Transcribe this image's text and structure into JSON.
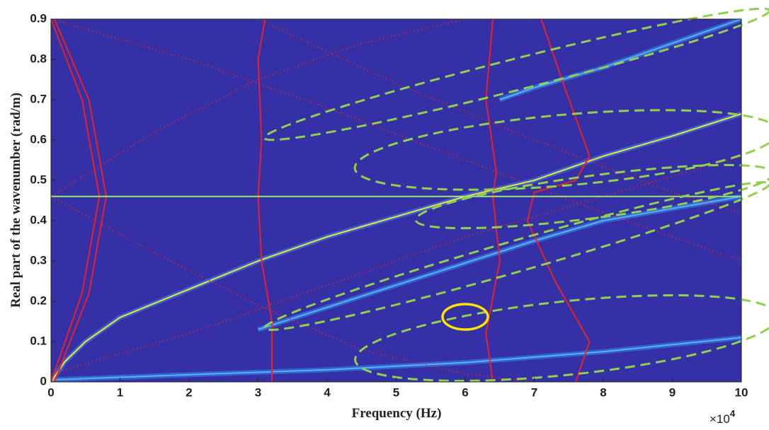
{
  "chart_data": {
    "type": "line",
    "xlabel": "Frequency (Hz)",
    "ylabel": "Real part of the wavenumber (rad/m)",
    "x_multiplier_base": "×10",
    "x_multiplier_power": "4",
    "xlim": [
      0,
      10
    ],
    "ylim": [
      0,
      0.9
    ],
    "xticks": [
      0,
      1,
      2,
      3,
      4,
      5,
      6,
      7,
      8,
      9,
      10
    ],
    "yticks": [
      0,
      0.1,
      0.2,
      0.3,
      0.4,
      0.5,
      0.6,
      0.7,
      0.8,
      0.9
    ],
    "background": "#3530a6",
    "hline": {
      "value": 0.46,
      "color": "#9be86a"
    },
    "series": [
      {
        "color": "#4fb4ff",
        "dashed": false,
        "x": [
          0,
          2,
          4,
          6,
          8,
          10
        ],
        "values": [
          0.005,
          0.018,
          0.03,
          0.048,
          0.075,
          0.11
        ]
      },
      {
        "color": "#4fb4ff",
        "dashed": false,
        "x": [
          3,
          4,
          5,
          6,
          7,
          8,
          9,
          10
        ],
        "values": [
          0.13,
          0.185,
          0.24,
          0.295,
          0.35,
          0.4,
          0.43,
          0.46
        ]
      },
      {
        "color": "#4fb4ff",
        "dashed": false,
        "x": [
          6.5,
          7,
          8,
          9,
          10
        ],
        "values": [
          0.7,
          0.73,
          0.78,
          0.84,
          0.9
        ]
      },
      {
        "color": "#f4e23c",
        "dashed": false,
        "x": [
          0,
          0.2,
          0.5,
          1,
          2,
          3,
          4,
          5,
          6,
          7,
          8,
          9,
          10
        ],
        "values": [
          0,
          0.05,
          0.1,
          0.16,
          0.23,
          0.3,
          0.36,
          0.41,
          0.46,
          0.5,
          0.56,
          0.61,
          0.665
        ]
      },
      {
        "color": "#e8202a",
        "dashed": false,
        "x": [
          3.1,
          3.0,
          3.05,
          3.0,
          3.05,
          3.2,
          3.2
        ],
        "values": [
          0.9,
          0.8,
          0.6,
          0.46,
          0.3,
          0.15,
          0
        ]
      },
      {
        "color": "#e8202a",
        "dashed": false,
        "x": [
          6.4,
          6.3,
          6.45,
          6.4,
          6.5,
          6.3,
          6.4
        ],
        "values": [
          0.9,
          0.7,
          0.52,
          0.46,
          0.3,
          0.12,
          0
        ]
      },
      {
        "color": "#e8202a",
        "dashed": false,
        "x": [
          7.1,
          7.4,
          7.8,
          7.6,
          7.0,
          6.9,
          7.3,
          7.8,
          7.6
        ],
        "values": [
          0.9,
          0.75,
          0.56,
          0.5,
          0.47,
          0.4,
          0.25,
          0.1,
          0
        ]
      },
      {
        "color": "#e8202a",
        "dashed": false,
        "x": [
          0,
          0.45,
          0.7,
          0.45,
          0
        ],
        "values": [
          0.9,
          0.7,
          0.46,
          0.22,
          0
        ]
      },
      {
        "color": "#e8202a",
        "dashed": false,
        "x": [
          0.05,
          0.55,
          0.8,
          0.55,
          0.05
        ],
        "values": [
          0.9,
          0.7,
          0.46,
          0.22,
          0
        ]
      },
      {
        "color": "#e8202a",
        "dashed": true,
        "x": [
          0,
          1.5,
          3,
          4.5,
          6,
          8,
          10
        ],
        "values": [
          0.46,
          0.62,
          0.75,
          0.84,
          0.9,
          0.9,
          0.9
        ]
      },
      {
        "color": "#e8202a",
        "dashed": true,
        "x": [
          0,
          1.5,
          3,
          4.5,
          6,
          7
        ],
        "values": [
          0.46,
          0.32,
          0.19,
          0.08,
          0.02,
          0
        ]
      },
      {
        "color": "#e8202a",
        "dashed": true,
        "x": [
          0,
          2,
          4,
          6,
          8,
          10
        ],
        "values": [
          0.9,
          0.8,
          0.68,
          0.55,
          0.42,
          0.3
        ]
      },
      {
        "color": "#e8202a",
        "dashed": true,
        "x": [
          0,
          2,
          4,
          6,
          8,
          10
        ],
        "values": [
          0.02,
          0.12,
          0.24,
          0.36,
          0.46,
          0.56
        ]
      },
      {
        "color": "#e8202a",
        "dashed": true,
        "x": [
          3,
          5,
          7,
          9,
          10
        ],
        "values": [
          0.9,
          0.74,
          0.6,
          0.47,
          0.42
        ]
      }
    ]
  }
}
